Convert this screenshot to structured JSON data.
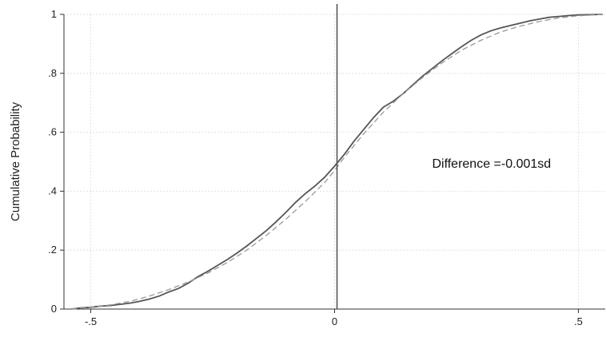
{
  "chart_data": {
    "type": "line",
    "ylabel": "Cumulative Probability",
    "xlabel": "",
    "xlim": [
      -0.555,
      0.555
    ],
    "ylim": [
      0,
      1
    ],
    "grid": true,
    "x_ticks": [
      {
        "value": -0.5,
        "label": "-.5"
      },
      {
        "value": 0,
        "label": "0"
      },
      {
        "value": 0.5,
        "label": ".5"
      }
    ],
    "y_ticks": [
      {
        "value": 0,
        "label": "0"
      },
      {
        "value": 0.2,
        "label": ".2"
      },
      {
        "value": 0.4,
        "label": ".4"
      },
      {
        "value": 0.6,
        "label": ".6"
      },
      {
        "value": 0.8,
        "label": ".8"
      },
      {
        "value": 1,
        "label": "1"
      }
    ],
    "reference_line": {
      "x": 0.005,
      "color": "#555555"
    },
    "annotation": {
      "text": "Difference =-0.001sd",
      "x": 0.2,
      "y": 0.48
    },
    "series": [
      {
        "style": "solid",
        "color": "#555555",
        "points": [
          [
            -0.54,
            0.0
          ],
          [
            -0.52,
            0.004
          ],
          [
            -0.5,
            0.006
          ],
          [
            -0.48,
            0.01
          ],
          [
            -0.46,
            0.012
          ],
          [
            -0.44,
            0.016
          ],
          [
            -0.42,
            0.02
          ],
          [
            -0.4,
            0.026
          ],
          [
            -0.38,
            0.034
          ],
          [
            -0.36,
            0.044
          ],
          [
            -0.34,
            0.058
          ],
          [
            -0.32,
            0.07
          ],
          [
            -0.3,
            0.088
          ],
          [
            -0.28,
            0.11
          ],
          [
            -0.26,
            0.128
          ],
          [
            -0.24,
            0.148
          ],
          [
            -0.22,
            0.168
          ],
          [
            -0.2,
            0.19
          ],
          [
            -0.18,
            0.214
          ],
          [
            -0.16,
            0.24
          ],
          [
            -0.14,
            0.266
          ],
          [
            -0.12,
            0.296
          ],
          [
            -0.1,
            0.328
          ],
          [
            -0.08,
            0.362
          ],
          [
            -0.06,
            0.392
          ],
          [
            -0.04,
            0.418
          ],
          [
            -0.02,
            0.448
          ],
          [
            0.0,
            0.485
          ],
          [
            0.02,
            0.525
          ],
          [
            0.04,
            0.57
          ],
          [
            0.06,
            0.61
          ],
          [
            0.08,
            0.65
          ],
          [
            0.1,
            0.685
          ],
          [
            0.12,
            0.705
          ],
          [
            0.14,
            0.73
          ],
          [
            0.16,
            0.76
          ],
          [
            0.18,
            0.79
          ],
          [
            0.2,
            0.816
          ],
          [
            0.22,
            0.842
          ],
          [
            0.24,
            0.866
          ],
          [
            0.26,
            0.89
          ],
          [
            0.28,
            0.912
          ],
          [
            0.3,
            0.93
          ],
          [
            0.32,
            0.944
          ],
          [
            0.34,
            0.954
          ],
          [
            0.36,
            0.962
          ],
          [
            0.38,
            0.97
          ],
          [
            0.4,
            0.978
          ],
          [
            0.42,
            0.984
          ],
          [
            0.44,
            0.99
          ],
          [
            0.46,
            0.993
          ],
          [
            0.48,
            0.996
          ],
          [
            0.5,
            0.998
          ],
          [
            0.55,
            1.0
          ]
        ]
      },
      {
        "style": "dashed",
        "color": "#999999",
        "points": [
          [
            -0.54,
            0.0
          ],
          [
            -0.5,
            0.006
          ],
          [
            -0.46,
            0.014
          ],
          [
            -0.42,
            0.026
          ],
          [
            -0.38,
            0.044
          ],
          [
            -0.34,
            0.066
          ],
          [
            -0.3,
            0.092
          ],
          [
            -0.26,
            0.122
          ],
          [
            -0.22,
            0.158
          ],
          [
            -0.18,
            0.2
          ],
          [
            -0.14,
            0.25
          ],
          [
            -0.1,
            0.305
          ],
          [
            -0.06,
            0.365
          ],
          [
            -0.02,
            0.43
          ],
          [
            0.0,
            0.47
          ],
          [
            0.02,
            0.515
          ],
          [
            0.06,
            0.595
          ],
          [
            0.1,
            0.668
          ],
          [
            0.14,
            0.73
          ],
          [
            0.18,
            0.785
          ],
          [
            0.22,
            0.835
          ],
          [
            0.26,
            0.878
          ],
          [
            0.3,
            0.912
          ],
          [
            0.34,
            0.94
          ],
          [
            0.38,
            0.96
          ],
          [
            0.42,
            0.976
          ],
          [
            0.46,
            0.988
          ],
          [
            0.5,
            0.995
          ],
          [
            0.55,
            1.0
          ]
        ]
      }
    ]
  }
}
